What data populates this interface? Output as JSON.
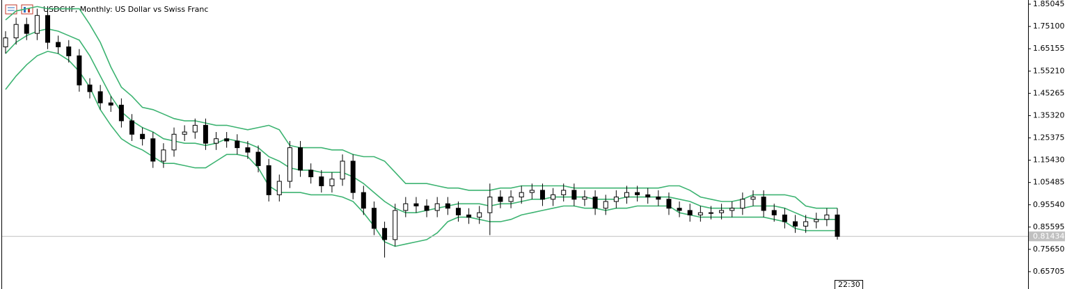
{
  "chart_data": {
    "type": "candlestick",
    "title": "USDCHF, Monthly:  US Dollar vs Swiss Franc",
    "open": [
      1.66,
      1.7,
      1.76,
      1.72,
      1.8,
      1.68,
      1.66,
      1.62,
      1.49,
      1.46,
      1.41,
      1.4,
      1.33,
      1.27,
      1.25,
      1.15,
      1.2,
      1.27,
      1.28,
      1.31,
      1.23,
      1.25,
      1.24,
      1.21,
      1.19,
      1.13,
      1.0,
      1.06,
      1.21,
      1.11,
      1.08,
      1.04,
      1.07,
      1.15,
      1.01,
      0.94,
      0.85,
      0.8,
      0.93,
      0.96,
      0.95,
      0.93,
      0.96,
      0.94,
      0.91,
      0.9,
      0.92,
      0.99,
      0.97,
      0.99,
      1.01,
      1.02,
      0.98,
      1.0,
      1.02,
      0.98,
      0.99,
      0.94,
      0.97,
      0.99,
      1.01,
      1.0,
      0.99,
      0.98,
      0.94,
      0.93,
      0.91,
      0.92,
      0.92,
      0.93,
      0.94,
      0.98,
      0.99,
      0.93,
      0.91,
      0.88,
      0.86,
      0.88,
      0.89,
      0.91
    ],
    "high": [
      1.73,
      1.79,
      1.79,
      1.83,
      1.83,
      1.71,
      1.69,
      1.65,
      1.52,
      1.49,
      1.44,
      1.43,
      1.36,
      1.3,
      1.28,
      1.23,
      1.3,
      1.31,
      1.34,
      1.34,
      1.28,
      1.28,
      1.27,
      1.24,
      1.22,
      1.16,
      1.09,
      1.24,
      1.24,
      1.14,
      1.11,
      1.1,
      1.18,
      1.18,
      1.04,
      0.97,
      0.88,
      0.96,
      0.99,
      0.99,
      0.98,
      0.99,
      0.99,
      0.97,
      0.94,
      0.95,
      1.05,
      1.02,
      1.02,
      1.04,
      1.05,
      1.05,
      1.03,
      1.05,
      1.05,
      1.02,
      1.02,
      1.0,
      1.02,
      1.04,
      1.04,
      1.03,
      1.02,
      1.01,
      0.97,
      0.96,
      0.95,
      0.95,
      0.96,
      0.97,
      1.01,
      1.02,
      1.02,
      0.96,
      0.94,
      0.91,
      0.91,
      0.92,
      0.94,
      0.94
    ],
    "low": [
      1.63,
      1.67,
      1.69,
      1.69,
      1.65,
      1.63,
      1.59,
      1.46,
      1.43,
      1.38,
      1.37,
      1.3,
      1.24,
      1.22,
      1.12,
      1.12,
      1.17,
      1.24,
      1.25,
      1.2,
      1.2,
      1.21,
      1.18,
      1.16,
      1.1,
      0.97,
      0.97,
      1.03,
      1.08,
      1.05,
      1.01,
      1.01,
      1.04,
      0.98,
      0.91,
      0.82,
      0.72,
      0.77,
      0.9,
      0.92,
      0.9,
      0.9,
      0.91,
      0.88,
      0.87,
      0.87,
      0.82,
      0.94,
      0.94,
      0.96,
      0.98,
      0.95,
      0.95,
      0.97,
      0.95,
      0.95,
      0.91,
      0.91,
      0.94,
      0.96,
      0.97,
      0.96,
      0.95,
      0.91,
      0.9,
      0.88,
      0.88,
      0.89,
      0.89,
      0.9,
      0.91,
      0.95,
      0.9,
      0.88,
      0.85,
      0.83,
      0.83,
      0.85,
      0.86,
      0.8
    ],
    "close": [
      1.7,
      1.76,
      1.72,
      1.8,
      1.68,
      1.66,
      1.62,
      1.49,
      1.46,
      1.41,
      1.4,
      1.33,
      1.27,
      1.25,
      1.15,
      1.2,
      1.27,
      1.28,
      1.31,
      1.23,
      1.25,
      1.24,
      1.21,
      1.19,
      1.13,
      1.0,
      1.06,
      1.21,
      1.11,
      1.08,
      1.04,
      1.07,
      1.15,
      1.01,
      0.94,
      0.85,
      0.8,
      0.93,
      0.96,
      0.95,
      0.93,
      0.96,
      0.94,
      0.91,
      0.9,
      0.92,
      0.99,
      0.97,
      0.99,
      1.01,
      1.02,
      0.98,
      1.0,
      1.02,
      0.98,
      0.99,
      0.94,
      0.97,
      0.99,
      1.01,
      1.0,
      0.99,
      0.98,
      0.94,
      0.93,
      0.91,
      0.92,
      0.92,
      0.93,
      0.94,
      0.98,
      0.99,
      0.93,
      0.91,
      0.88,
      0.86,
      0.88,
      0.89,
      0.91,
      0.81434
    ],
    "bands": [
      {
        "color": "#3cb371",
        "values": [
          1.78,
          1.82,
          1.83,
          1.84,
          1.83,
          1.83,
          1.83,
          1.83,
          1.76,
          1.68,
          1.57,
          1.48,
          1.44,
          1.39,
          1.38,
          1.36,
          1.34,
          1.33,
          1.33,
          1.32,
          1.31,
          1.31,
          1.3,
          1.29,
          1.3,
          1.31,
          1.29,
          1.22,
          1.21,
          1.21,
          1.21,
          1.2,
          1.2,
          1.18,
          1.17,
          1.17,
          1.15,
          1.1,
          1.05,
          1.05,
          1.05,
          1.04,
          1.03,
          1.03,
          1.02,
          1.02,
          1.02,
          1.03,
          1.03,
          1.04,
          1.04,
          1.04,
          1.04,
          1.04,
          1.03,
          1.03,
          1.03,
          1.03,
          1.03,
          1.03,
          1.03,
          1.03,
          1.03,
          1.04,
          1.04,
          1.02,
          0.99,
          0.98,
          0.97,
          0.97,
          0.98,
          1.0,
          1.0,
          1.0,
          1.0,
          0.99,
          0.95,
          0.94,
          0.94,
          0.94
        ]
      },
      {
        "color": "#3cb371",
        "values": [
          1.63,
          1.68,
          1.71,
          1.73,
          1.74,
          1.73,
          1.71,
          1.69,
          1.62,
          1.53,
          1.44,
          1.37,
          1.33,
          1.3,
          1.28,
          1.25,
          1.24,
          1.23,
          1.23,
          1.22,
          1.23,
          1.25,
          1.24,
          1.23,
          1.21,
          1.17,
          1.15,
          1.12,
          1.11,
          1.11,
          1.1,
          1.1,
          1.1,
          1.08,
          1.05,
          1.01,
          0.97,
          0.94,
          0.92,
          0.92,
          0.93,
          0.94,
          0.95,
          0.96,
          0.96,
          0.96,
          0.95,
          0.96,
          0.96,
          0.97,
          0.98,
          0.98,
          0.99,
          0.99,
          0.99,
          0.99,
          0.98,
          0.98,
          0.98,
          0.99,
          0.99,
          0.99,
          0.99,
          0.99,
          0.98,
          0.97,
          0.95,
          0.94,
          0.94,
          0.94,
          0.94,
          0.95,
          0.95,
          0.95,
          0.94,
          0.92,
          0.9,
          0.89,
          0.89,
          0.89
        ]
      },
      {
        "color": "#3cb371",
        "values": [
          1.47,
          1.53,
          1.58,
          1.62,
          1.64,
          1.63,
          1.6,
          1.55,
          1.48,
          1.38,
          1.31,
          1.25,
          1.22,
          1.2,
          1.17,
          1.14,
          1.14,
          1.13,
          1.12,
          1.12,
          1.15,
          1.18,
          1.18,
          1.17,
          1.12,
          1.04,
          1.01,
          1.01,
          1.01,
          1.0,
          1.0,
          1.0,
          0.99,
          0.97,
          0.92,
          0.86,
          0.79,
          0.77,
          0.78,
          0.79,
          0.8,
          0.83,
          0.88,
          0.9,
          0.9,
          0.89,
          0.88,
          0.88,
          0.89,
          0.91,
          0.92,
          0.93,
          0.94,
          0.95,
          0.95,
          0.94,
          0.94,
          0.93,
          0.94,
          0.94,
          0.95,
          0.95,
          0.95,
          0.95,
          0.92,
          0.91,
          0.9,
          0.9,
          0.9,
          0.9,
          0.9,
          0.9,
          0.9,
          0.89,
          0.88,
          0.85,
          0.84,
          0.84,
          0.84,
          0.84
        ]
      }
    ],
    "up_color": "#ffffff",
    "down_color": "#000000",
    "current_price": 0.81434,
    "time_label": "22:30",
    "ylim": [
      0.65705,
      1.85045
    ],
    "yticks": [
      1.85045,
      {
        "value": 1.751,
        "label": "1.75100"
      },
      1.65155,
      {
        "value": 1.5521,
        "label": "1.55210"
      },
      1.45265,
      {
        "value": 1.3532,
        "label": "1.35320"
      },
      1.25375,
      {
        "value": 1.1543,
        "label": "1.15430"
      },
      1.05485,
      {
        "value": 0.9554,
        "label": "0.95540"
      },
      0.85595,
      {
        "value": 0.7565,
        "label": "0.75650"
      },
      0.65705
    ]
  }
}
